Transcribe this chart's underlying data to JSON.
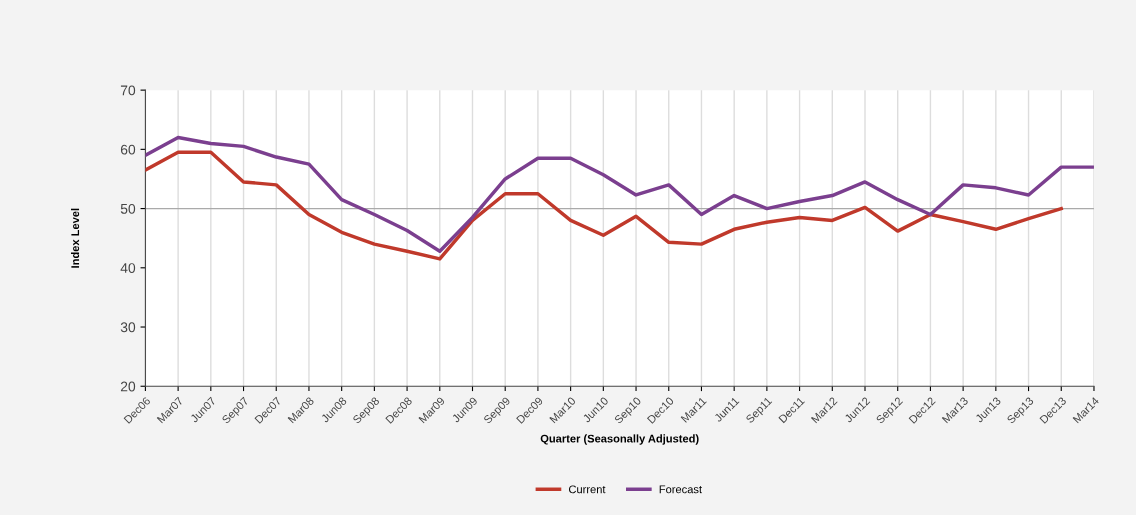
{
  "chart_data": {
    "type": "line",
    "xlabel": "Quarter (Seasonally Adjusted)",
    "ylabel": "Index Level",
    "categories": [
      "Dec06",
      "Mar07",
      "Jun07",
      "Sep07",
      "Dec07",
      "Mar08",
      "Jun08",
      "Sep08",
      "Dec08",
      "Mar09",
      "Jun09",
      "Sep09",
      "Dec09",
      "Mar10",
      "Jun10",
      "Sep10",
      "Dec10",
      "Mar11",
      "Jun11",
      "Sep11",
      "Dec11",
      "Mar12",
      "Jun12",
      "Sep12",
      "Dec12",
      "Mar13",
      "Jun13",
      "Sep13",
      "Dec13",
      "Mar14"
    ],
    "series": [
      {
        "name": "Current",
        "color": "#c0392b",
        "values": [
          56.5,
          59.5,
          59.5,
          54.5,
          54,
          49,
          46,
          44,
          42.8,
          41.5,
          48,
          52.5,
          52.5,
          48,
          45.5,
          48.7,
          44.3,
          44,
          46.5,
          47.7,
          48.5,
          48,
          50.2,
          46.2,
          49,
          47.8,
          46.5,
          48.3,
          50,
          null
        ]
      },
      {
        "name": "Forecast",
        "color": "#7b3f8f",
        "values": [
          59,
          62,
          61,
          60.5,
          58.7,
          57.5,
          51.5,
          49,
          46.3,
          42.8,
          48.5,
          55,
          58.5,
          58.5,
          55.7,
          52.3,
          54,
          49,
          52.2,
          50,
          51.2,
          52.2,
          54.5,
          51.5,
          49,
          54,
          53.5,
          52.3,
          57,
          57
        ]
      }
    ],
    "ylim": [
      20,
      70
    ],
    "yticks": [
      20,
      30,
      40,
      50,
      60,
      70
    ],
    "grid": "x",
    "legend": "bottom",
    "ref_lines": [
      {
        "axis": "y",
        "value": 50,
        "color": "#aaaaaa"
      }
    ]
  }
}
